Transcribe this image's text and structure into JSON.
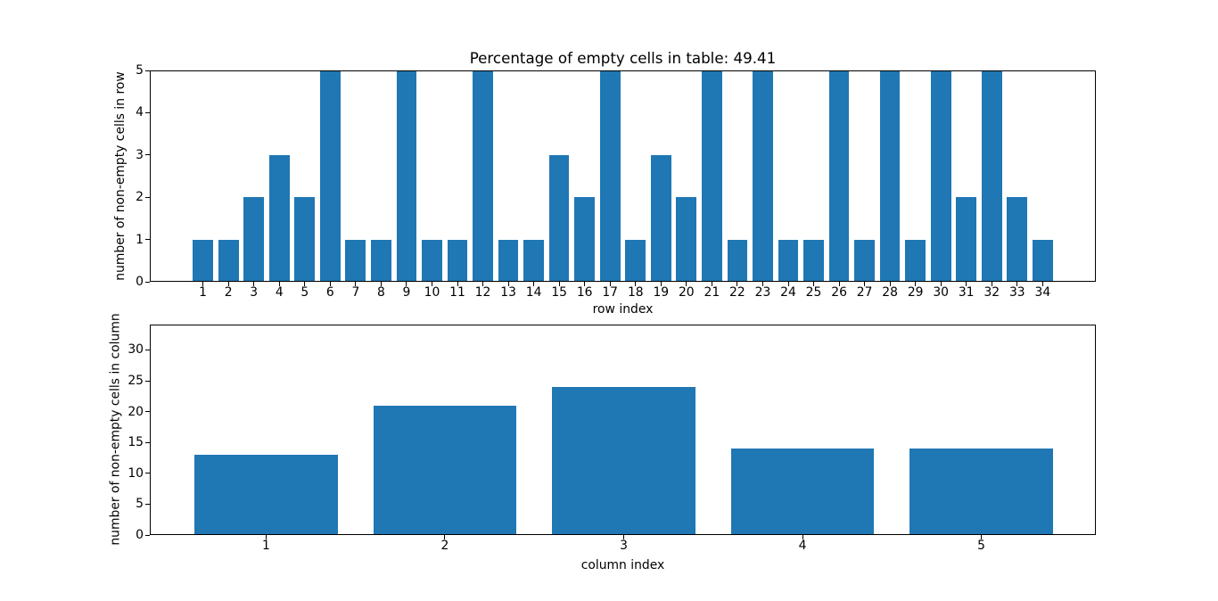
{
  "colors": {
    "bar": "#1f77b4",
    "background": "#ffffff",
    "axis": "#000000",
    "text": "#000000"
  },
  "chart_data": [
    {
      "id": "rows",
      "type": "bar",
      "title": "Percentage of empty cells in table: 49.41",
      "xlabel": "row index",
      "ylabel": "number of non-empty cells in row",
      "categories": [
        1,
        2,
        3,
        4,
        5,
        6,
        7,
        8,
        9,
        10,
        11,
        12,
        13,
        14,
        15,
        16,
        17,
        18,
        19,
        20,
        21,
        22,
        23,
        24,
        25,
        26,
        27,
        28,
        29,
        30,
        31,
        32,
        33,
        34
      ],
      "values": [
        1,
        1,
        2,
        3,
        2,
        5,
        1,
        1,
        5,
        1,
        1,
        5,
        1,
        1,
        3,
        2,
        5,
        1,
        3,
        2,
        5,
        1,
        5,
        1,
        1,
        5,
        1,
        5,
        1,
        5,
        2,
        5,
        2,
        1
      ],
      "yticks": [
        0,
        1,
        2,
        3,
        4,
        5
      ],
      "ylim": [
        0,
        5
      ],
      "xlim": [
        -1.09,
        36.09
      ],
      "bar_width": 0.8,
      "grid": false,
      "legend": "none"
    },
    {
      "id": "columns",
      "type": "bar",
      "title": "",
      "xlabel": "column index",
      "ylabel": "number of non-empty cells in column",
      "categories": [
        1,
        2,
        3,
        4,
        5
      ],
      "values": [
        13,
        21,
        24,
        14,
        14
      ],
      "yticks": [
        0,
        5,
        10,
        15,
        20,
        25,
        30
      ],
      "ylim": [
        0,
        34.1
      ],
      "xlim": [
        0.35,
        5.64
      ],
      "bar_width": 0.8,
      "grid": false,
      "legend": "none"
    }
  ]
}
